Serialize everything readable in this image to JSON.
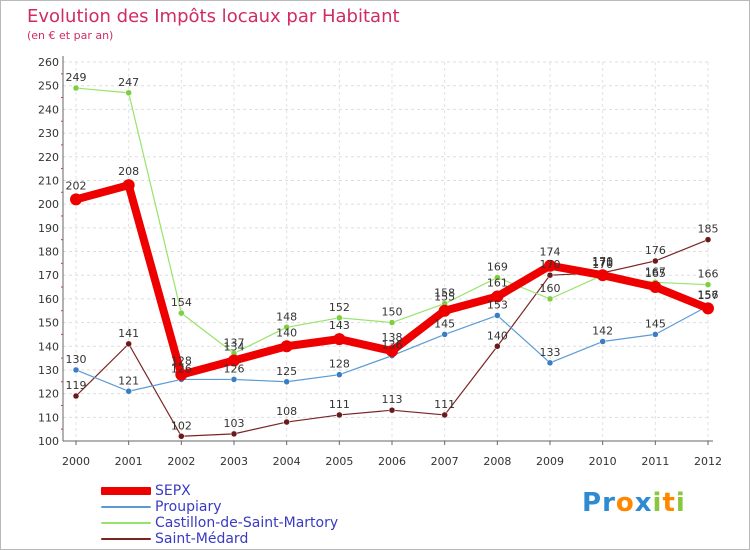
{
  "title": "Evolution des Impôts locaux par Habitant",
  "subtitle": "(en € et par an)",
  "logo": {
    "text": "Proxiti",
    "letters": [
      "P",
      "r",
      "o",
      "x",
      "i",
      "t",
      "i"
    ],
    "colors": [
      "#2e8bd1",
      "#2e8bd1",
      "#ff8800",
      "#2e8bd1",
      "#8cc63f",
      "#ff8800",
      "#8cc63f"
    ]
  },
  "chart_data": {
    "type": "line",
    "title": "Evolution des Impôts locaux par Habitant",
    "subtitle": "(en € et par an)",
    "xlabel": "",
    "ylabel": "",
    "ylim": [
      100,
      260
    ],
    "yticks": [
      100,
      110,
      120,
      130,
      140,
      150,
      160,
      170,
      180,
      190,
      200,
      210,
      220,
      230,
      240,
      250,
      260
    ],
    "x": [
      "2000",
      "2001",
      "2002",
      "2003",
      "2004",
      "2005",
      "2006",
      "2007",
      "2008",
      "2009",
      "2010",
      "2011",
      "2012"
    ],
    "grid": true,
    "legend_position": "bottom-left",
    "series": [
      {
        "name": "SEPX",
        "color": "#ee0000",
        "width": 8,
        "marker": "#ee0000",
        "values": [
          202,
          208,
          128,
          134,
          140,
          143,
          138,
          155,
          161,
          174,
          170,
          165,
          156
        ]
      },
      {
        "name": "Proupiary",
        "color": "#5b9bd5",
        "width": 1.2,
        "marker": "#3b7dc4",
        "values": [
          130,
          121,
          126,
          126,
          125,
          128,
          136,
          145,
          153,
          133,
          142,
          145,
          157
        ]
      },
      {
        "name": "Castillon-de-Saint-Martory",
        "color": "#99e26b",
        "width": 1.2,
        "marker": "#7ccf3e",
        "values": [
          249,
          247,
          154,
          137,
          148,
          152,
          150,
          158,
          169,
          160,
          170,
          167,
          166
        ]
      },
      {
        "name": "Saint-Médard",
        "color": "#7a2424",
        "width": 1.2,
        "marker": "#6a1a1a",
        "values": [
          119,
          141,
          102,
          103,
          108,
          111,
          113,
          111,
          140,
          170,
          171,
          176,
          185
        ]
      }
    ]
  }
}
